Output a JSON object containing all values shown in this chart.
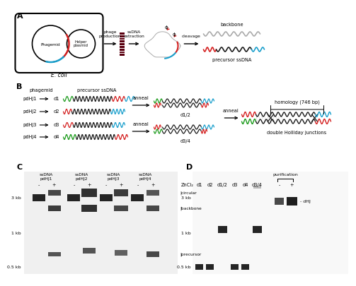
{
  "bg_color": "#ffffff",
  "colors": {
    "red": "#d42020",
    "blue": "#1a9fcc",
    "green": "#1a9a1a",
    "black": "#1a1a1a",
    "gray": "#aaaaaa",
    "dark_gray": "#555555",
    "maroon": "#5a0010",
    "light_gray": "#c8c8c8",
    "gel_bg": "#f0f0f0",
    "gel_bg_d": "#f8f8f8"
  },
  "panel_B": {
    "phagemid_col": "phagemid",
    "precursor_col": "precursor ssDNA",
    "labels_left": [
      "pdHJ1",
      "pdHJ2",
      "pdHJ3",
      "pdHJ4"
    ],
    "labels_d": [
      "d1",
      "d2",
      "d3",
      "d4"
    ],
    "anneal1": "anneal",
    "anneal2": "anneal",
    "anneal3": "anneal",
    "d12": "d1/2",
    "d34": "d3/4",
    "homology": "homology (746 bp)",
    "dHJ_label": "double Holliday junctions"
  },
  "panel_C": {
    "title_labels": [
      "ssDNA\npdHJ1",
      "ssDNA\npdHJ2",
      "ssDNA\npdHJ3",
      "ssDNA\npdHJ4"
    ],
    "ZnCl2": "ZnCl₂",
    "pm_signs": [
      "-",
      "+",
      "-",
      "+",
      "-",
      "+",
      "-",
      "+"
    ],
    "band_labels": [
      "circular",
      "backbone",
      "precursor"
    ],
    "size_labels": [
      "3 kb",
      "1 kb",
      "0.5 kb"
    ]
  },
  "panel_D": {
    "lane_labels": [
      "d1",
      "d2",
      "d1/2",
      "d3",
      "d4",
      "d3/4",
      "-",
      "+"
    ],
    "purification": "purification",
    "dHJ": "dHJ",
    "size_labels": [
      "3 kb",
      "1 kb",
      "0.5 kb"
    ]
  }
}
